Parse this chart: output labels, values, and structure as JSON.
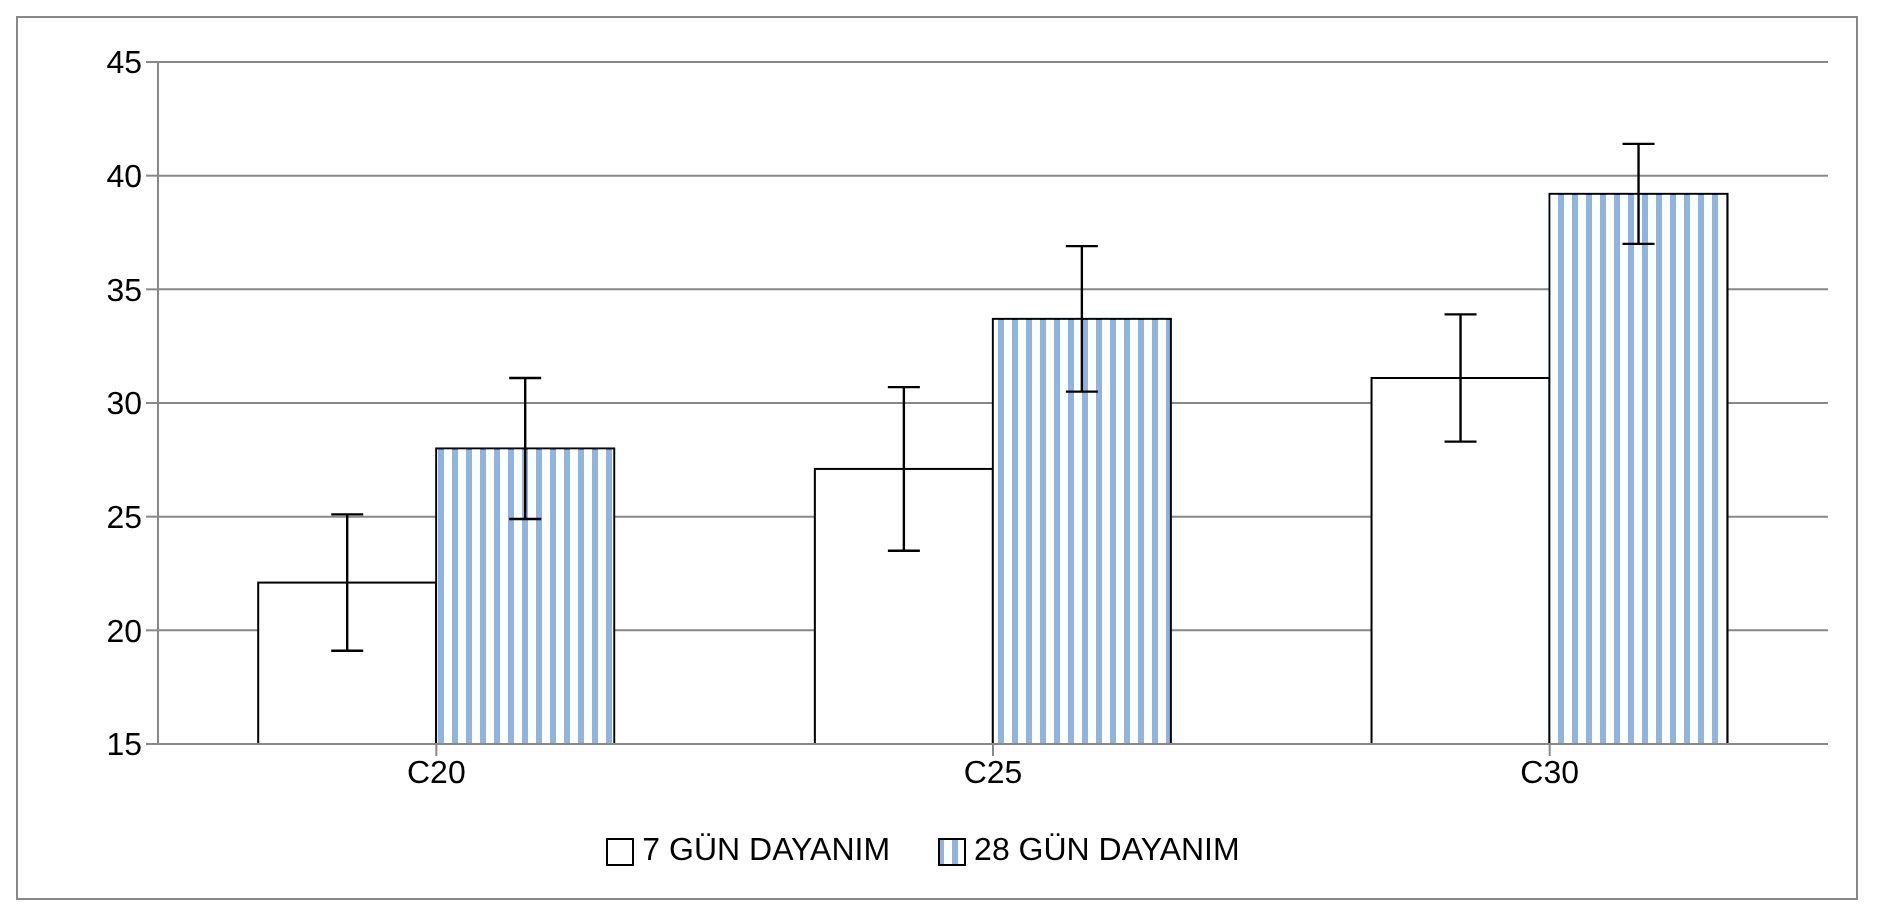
{
  "chart_data": {
    "type": "bar",
    "categories": [
      "C20",
      "C25",
      "C30"
    ],
    "series": [
      {
        "name": "7 GÜN DAYANIM",
        "color": "#ffffff",
        "values": [
          22.1,
          27.1,
          31.1
        ],
        "errors": [
          3,
          3.6,
          2.8
        ]
      },
      {
        "name": "28 GÜN DAYANIM",
        "color": "#8eb4e3",
        "values": [
          28,
          33.7,
          39.2
        ],
        "errors": [
          3.1,
          3.2,
          2.2
        ]
      }
    ],
    "ylim": [
      15,
      45
    ],
    "yticks": [
      15,
      20,
      25,
      30,
      35,
      40,
      45
    ],
    "grid": "y",
    "legend": "bottom"
  }
}
